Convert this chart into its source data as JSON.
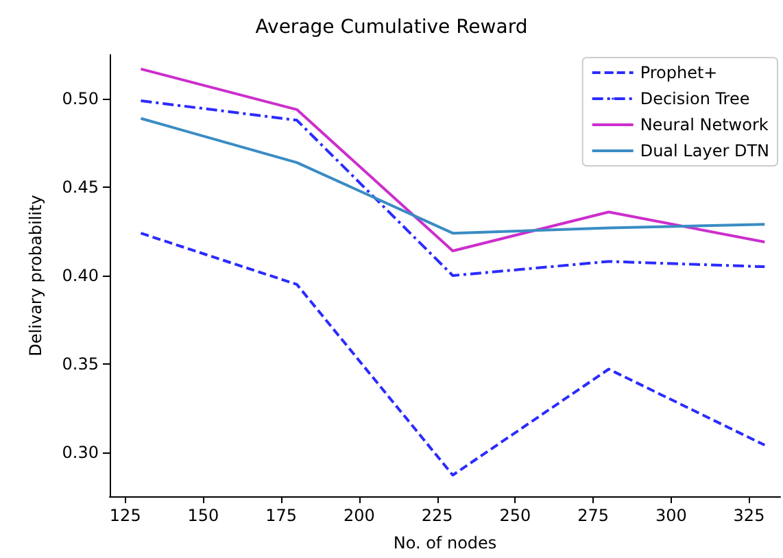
{
  "chart_data": {
    "type": "line",
    "title": "Average Cumulative Reward",
    "xlabel": "No. of nodes",
    "ylabel": "Delivary probability",
    "x": [
      130,
      180,
      230,
      280,
      330
    ],
    "series": [
      {
        "name": "Prophet+",
        "color": "#2b2bff",
        "line_style": "dashed",
        "values": [
          0.424,
          0.395,
          0.287,
          0.347,
          0.304
        ]
      },
      {
        "name": "Decision Tree",
        "color": "#2b2bff",
        "line_style": "dashdot",
        "values": [
          0.499,
          0.488,
          0.4,
          0.408,
          0.405
        ]
      },
      {
        "name": "Neural Network",
        "color": "#cc2ecc",
        "line_style": "solid",
        "values": [
          0.517,
          0.494,
          0.414,
          0.436,
          0.419
        ]
      },
      {
        "name": "Dual Layer DTN",
        "color": "#3a8cc4",
        "line_style": "solid",
        "values": [
          0.489,
          0.464,
          0.424,
          0.427,
          0.429
        ]
      }
    ],
    "xlim": [
      120,
      335
    ],
    "xticks": [
      125,
      150,
      175,
      200,
      225,
      250,
      275,
      300,
      325
    ],
    "ylim": [
      0.275,
      0.525
    ],
    "yticks": [
      {
        "value": 0.3,
        "label": "0.30"
      },
      0.35,
      {
        "value": 0.4,
        "label": "0.40"
      },
      0.45,
      {
        "value": 0.5,
        "label": "0.50"
      }
    ],
    "grid": false,
    "legend": "top right",
    "marker": "none"
  }
}
